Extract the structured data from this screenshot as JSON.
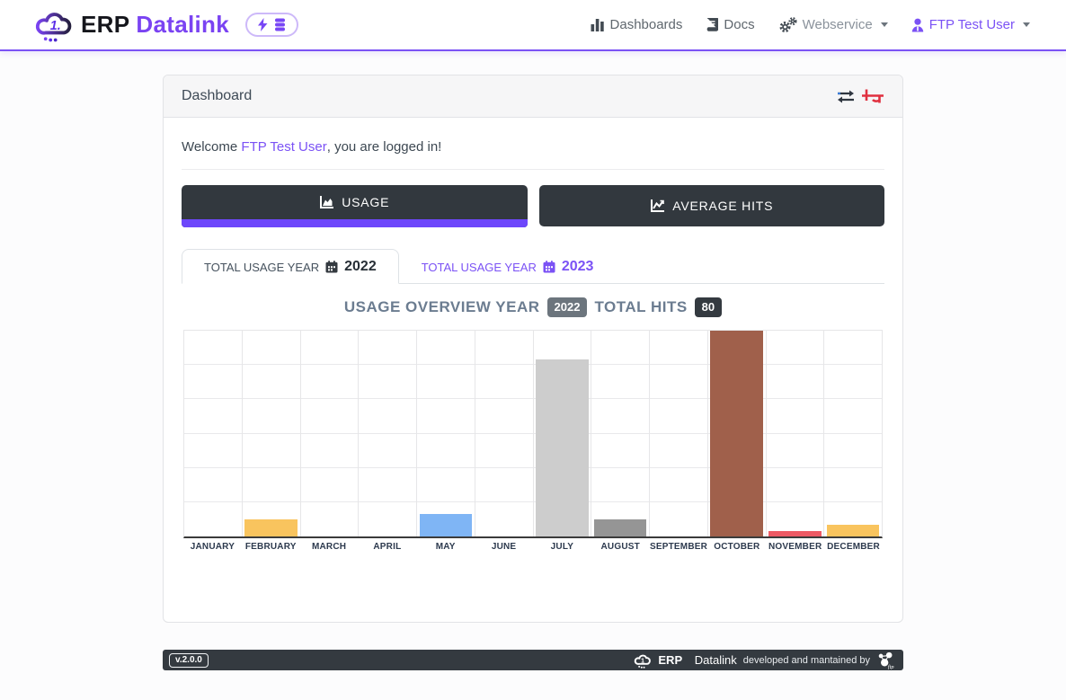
{
  "navbar": {
    "brand": {
      "erp": "ERP",
      "datalink": "Datalink"
    },
    "items": [
      {
        "label": "Dashboards"
      },
      {
        "label": "Docs"
      },
      {
        "label": "Webservice"
      },
      {
        "label": "FTP Test User"
      }
    ]
  },
  "card": {
    "header_title": "Dashboard",
    "welcome": {
      "prefix": "Welcome ",
      "user": "FTP Test User",
      "suffix": ", you are logged in!"
    },
    "buttons": {
      "usage": "USAGE",
      "average_hits": "AVERAGE HITS"
    },
    "tabs": [
      {
        "label": "TOTAL USAGE YEAR",
        "year": "2022",
        "active": true
      },
      {
        "label": "TOTAL USAGE YEAR",
        "year": "2023",
        "active": false
      }
    ],
    "chart_heading": {
      "part1": "USAGE OVERVIEW YEAR",
      "year_badge": "2022",
      "part2": "TOTAL HITS",
      "hits_badge": "80"
    }
  },
  "chart_data": {
    "type": "bar",
    "title": "USAGE OVERVIEW YEAR 2022 TOTAL HITS 80",
    "categories": [
      "JANUARY",
      "FEBRUARY",
      "MARCH",
      "APRIL",
      "MAY",
      "JUNE",
      "JULY",
      "AUGUST",
      "SEPTEMBER",
      "OCTOBER",
      "NOVEMBER",
      "DECEMBER"
    ],
    "values": [
      0,
      3,
      0,
      0,
      4,
      0,
      31,
      3,
      0,
      36,
      1,
      2
    ],
    "bar_colors": [
      "#F9C45E",
      "#F9C45E",
      "#F9C45E",
      "#F9C45E",
      "#7FB5F5",
      "#F9C45E",
      "#CDCDCD",
      "#959595",
      "#F9C45E",
      "#A0604B",
      "#EE5A64",
      "#F9C45E"
    ],
    "total_hits": 80,
    "xlabel": "",
    "ylabel": "",
    "ylim": [
      0,
      36
    ],
    "gridline_step": 6,
    "grid": true,
    "legend": false
  },
  "footer": {
    "version": "v.2.0.0",
    "brand": {
      "erp": "ERP",
      "datalink": "Datalink"
    },
    "note": "developed and mantained by"
  },
  "colors": {
    "accent_purple": "#7b52f5",
    "underline_purple": "#6d47fb",
    "button_dark": "#32383e",
    "badge_gray": "#6c757d",
    "badge_dark": "#343a40",
    "red_icon": "#e03140"
  }
}
